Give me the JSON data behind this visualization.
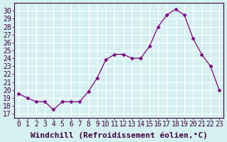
{
  "x": [
    0,
    1,
    2,
    3,
    4,
    5,
    6,
    7,
    8,
    9,
    10,
    11,
    12,
    13,
    14,
    15,
    16,
    17,
    18,
    19,
    20,
    21,
    22,
    23
  ],
  "y": [
    19.5,
    19.0,
    18.5,
    18.5,
    17.5,
    18.5,
    18.5,
    18.5,
    19.8,
    21.5,
    23.8,
    24.5,
    24.5,
    24.0,
    24.0,
    25.5,
    28.0,
    29.5,
    30.2,
    29.5,
    26.5,
    24.5,
    23.0,
    20.0
  ],
  "x_ticks": [
    0,
    1,
    2,
    3,
    4,
    5,
    6,
    7,
    8,
    9,
    10,
    11,
    12,
    13,
    14,
    15,
    16,
    17,
    18,
    19,
    20,
    21,
    22,
    23
  ],
  "y_ticks": [
    17,
    18,
    19,
    20,
    21,
    22,
    23,
    24,
    25,
    26,
    27,
    28,
    29,
    30
  ],
  "ylim": [
    16.5,
    31.0
  ],
  "xlim": [
    -0.5,
    23.5
  ],
  "xlabel": "Windchill (Refroidissement éolien,°C)",
  "line_color": "#800080",
  "marker_color": "#800080",
  "bg_color": "#d4f0f0",
  "grid_color": "#ffffff",
  "tick_fontsize": 7,
  "xlabel_fontsize": 8
}
